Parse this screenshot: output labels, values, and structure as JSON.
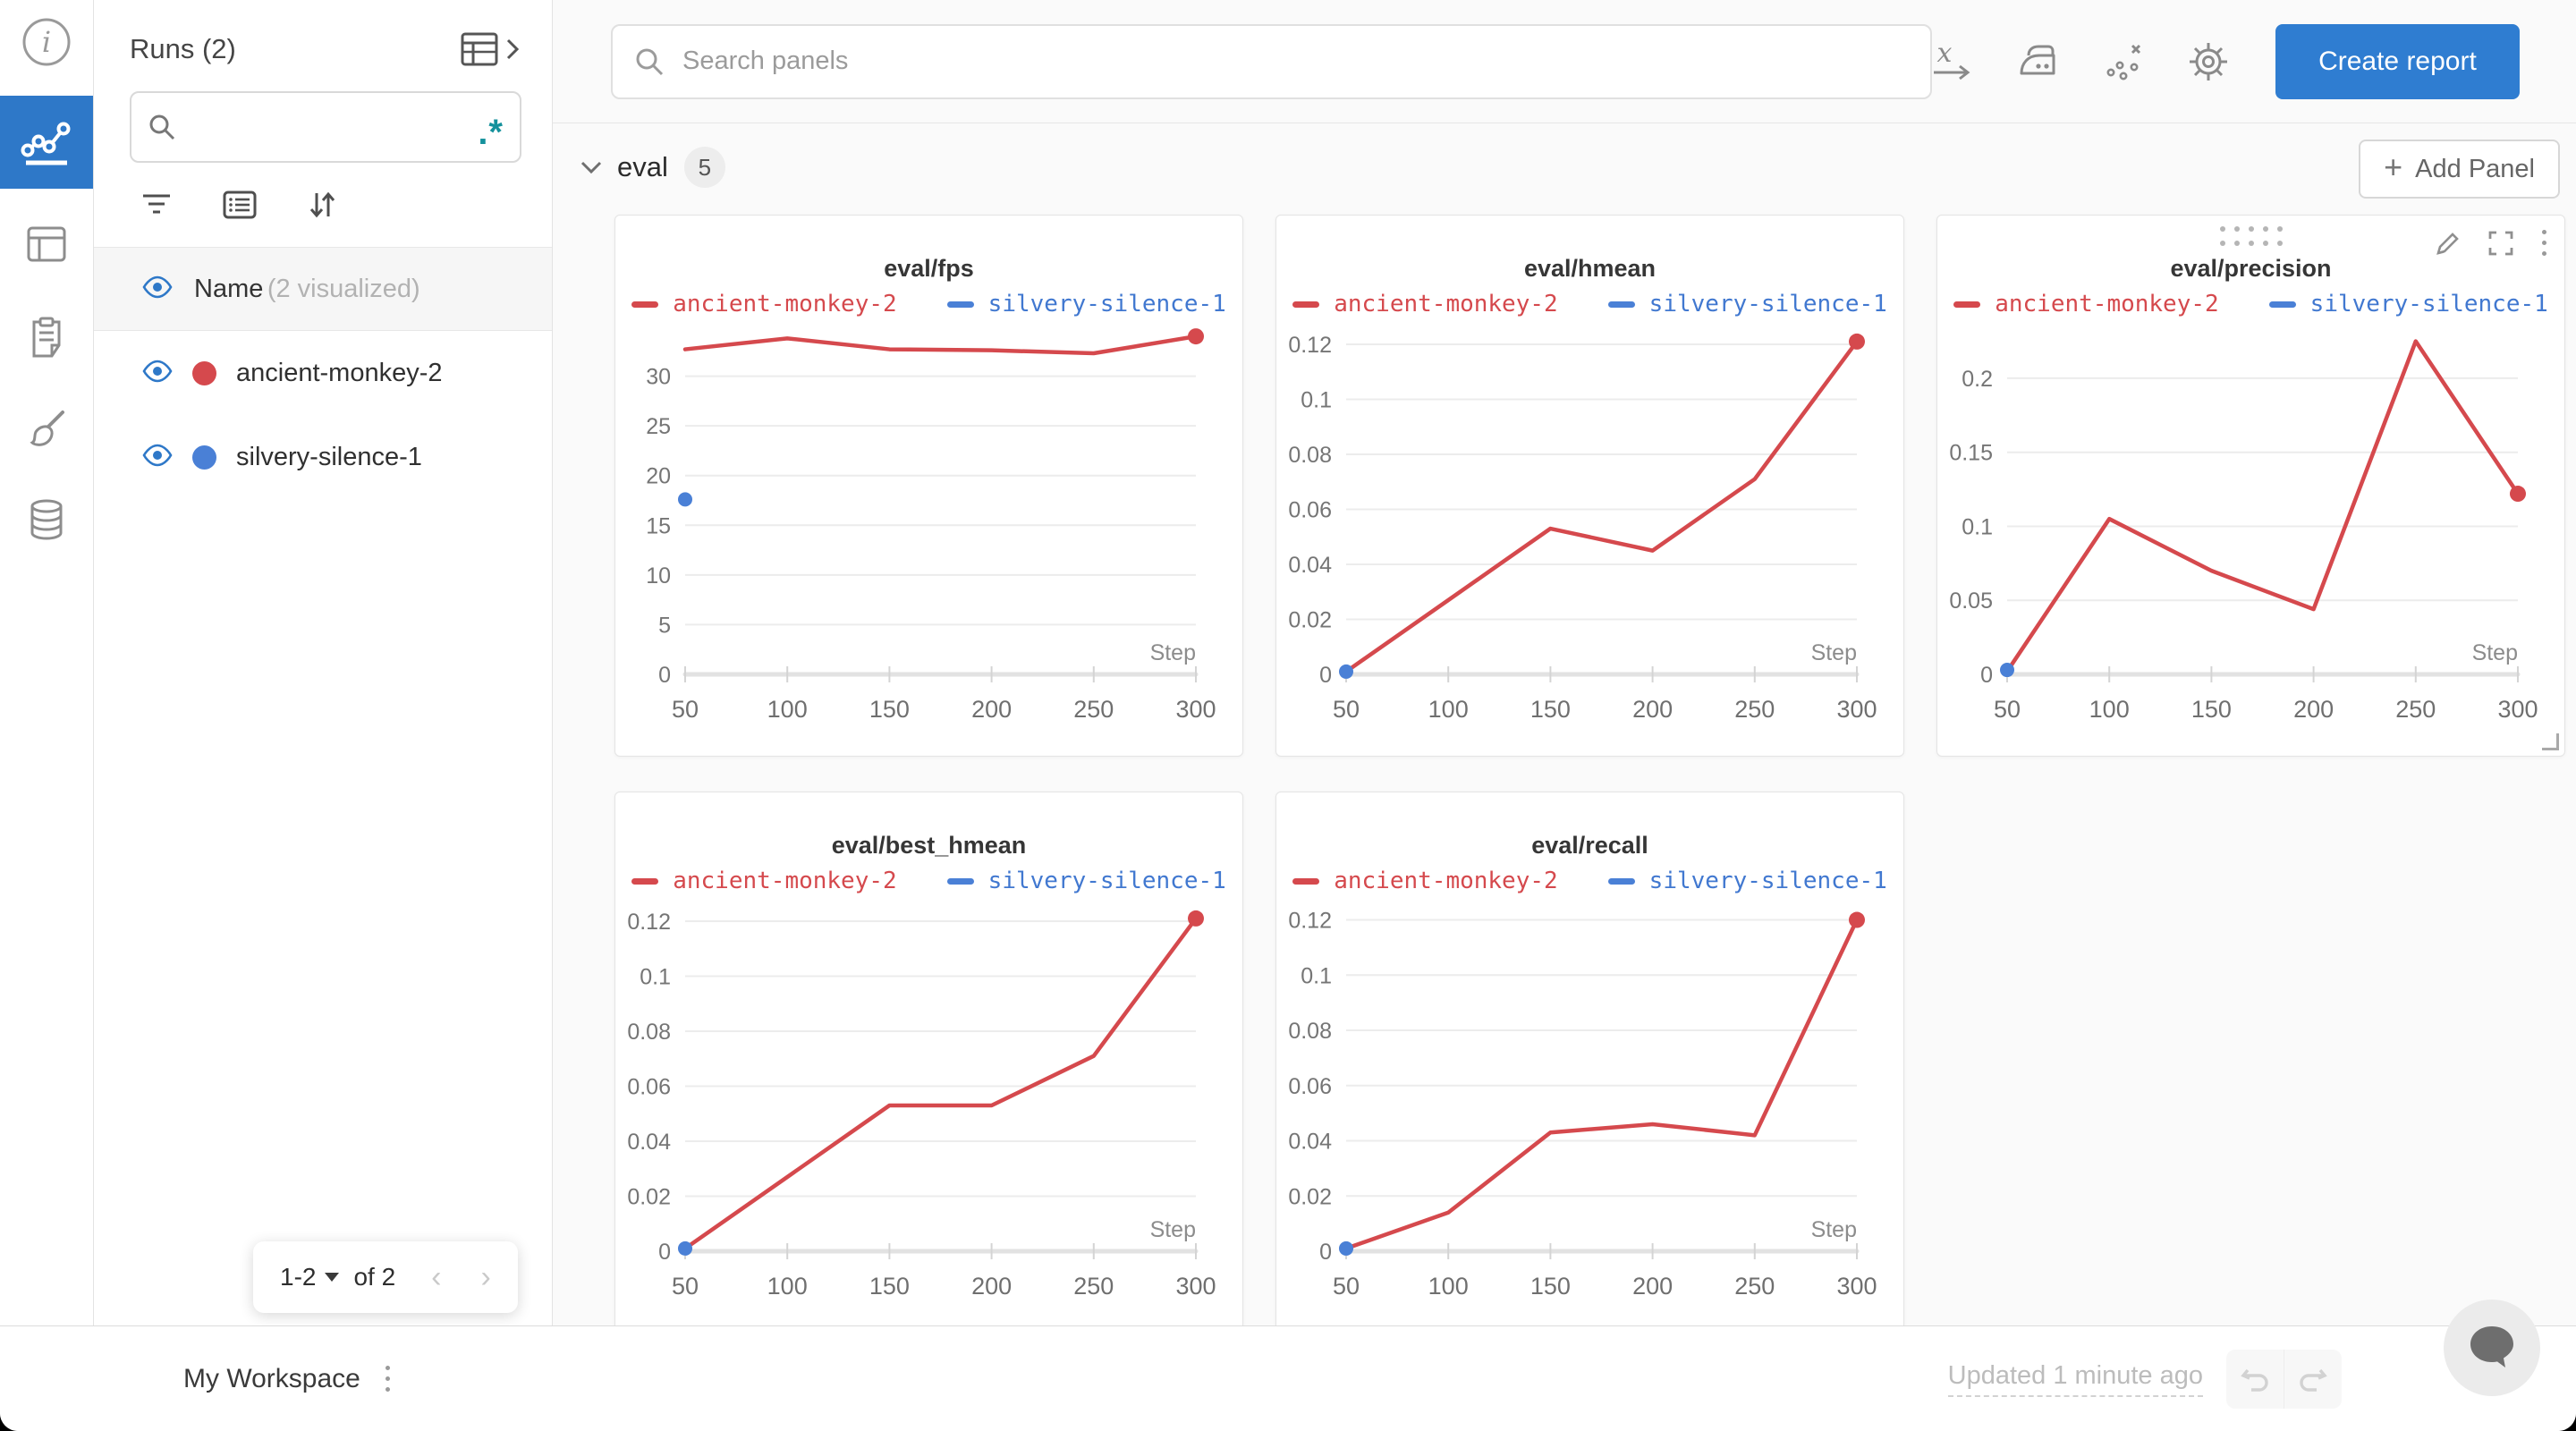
{
  "colors": {
    "brand_blue": "#2e78c8",
    "button_blue": "#2f7dd1",
    "run_red": "#d5494d",
    "run_blue": "#4a80d6",
    "legend_blue_text": "#4178d0",
    "regex_teal": "#14919c",
    "main_bg": "#fafafa",
    "grid_line": "#ececec",
    "axis_line": "#e2e2e2",
    "axis_text": "#757575"
  },
  "nav_rail": {
    "items": [
      "info",
      "line-chart",
      "table",
      "clipboard",
      "brush",
      "database"
    ],
    "active": "line-chart"
  },
  "runs_sidebar": {
    "title": "Runs (2)",
    "search": {
      "value": "",
      "placeholder": "",
      "regex_label": ".*"
    },
    "name_row": {
      "label": "Name",
      "annotation": "(2 visualized)"
    },
    "runs": [
      {
        "name": "ancient-monkey-2",
        "color": "#d5494d",
        "visible": true
      },
      {
        "name": "silvery-silence-1",
        "color": "#4a80d6",
        "visible": true
      }
    ],
    "pagination": {
      "range_label": "1-2",
      "of_label": "of 2",
      "prev": "‹",
      "next": "›"
    }
  },
  "topbar": {
    "search_placeholder": "Search panels",
    "icons": [
      "x-axis",
      "panel-smoothing-iron",
      "outliers",
      "settings-gear"
    ],
    "create_report_label": "Create report"
  },
  "section": {
    "label": "eval",
    "count": "5",
    "add_panel_label": "Add Panel",
    "add_panel_plus": "+"
  },
  "bottombar": {
    "workspace_label": "My Workspace",
    "updated_label": "Updated 1 minute ago"
  },
  "chart_data": [
    {
      "type": "line",
      "title": "eval/fps",
      "xlabel": "Step",
      "xticks": [
        50,
        100,
        150,
        200,
        250,
        300
      ],
      "yticks": [
        0,
        5,
        10,
        15,
        20,
        25,
        30
      ],
      "ylim": [
        0,
        35
      ],
      "grid": "horizontal",
      "legend_position": "top",
      "hovered": false,
      "series": [
        {
          "name": "ancient-monkey-2",
          "color_key": "run_red",
          "x": [
            50,
            100,
            150,
            200,
            250,
            300
          ],
          "y": [
            32.7,
            33.8,
            32.7,
            32.6,
            32.3,
            34.0
          ],
          "end_dot": true
        },
        {
          "name": "silvery-silence-1",
          "color_key": "run_blue",
          "x": [
            50
          ],
          "y": [
            17.6
          ],
          "point_only": true
        }
      ]
    },
    {
      "type": "line",
      "title": "eval/hmean",
      "xlabel": "Step",
      "xticks": [
        50,
        100,
        150,
        200,
        250,
        300
      ],
      "yticks": [
        0,
        0.02,
        0.04,
        0.06,
        0.08,
        0.1,
        0.12
      ],
      "ylim": [
        0,
        0.1265
      ],
      "grid": "horizontal",
      "legend_position": "top",
      "hovered": false,
      "series": [
        {
          "name": "ancient-monkey-2",
          "color_key": "run_red",
          "x": [
            50,
            100,
            150,
            200,
            250,
            300
          ],
          "y": [
            0.001,
            0.027,
            0.053,
            0.045,
            0.071,
            0.121
          ],
          "end_dot": true
        },
        {
          "name": "silvery-silence-1",
          "color_key": "run_blue",
          "x": [
            50
          ],
          "y": [
            0.001
          ],
          "point_only": true
        }
      ]
    },
    {
      "type": "line",
      "title": "eval/precision",
      "xlabel": "Step",
      "xticks": [
        50,
        100,
        150,
        200,
        250,
        300
      ],
      "yticks": [
        0,
        0.05,
        0.1,
        0.15,
        0.2
      ],
      "ylim": [
        0,
        0.235
      ],
      "grid": "horizontal",
      "legend_position": "top",
      "hovered": true,
      "series": [
        {
          "name": "ancient-monkey-2",
          "color_key": "run_red",
          "x": [
            50,
            100,
            150,
            200,
            250,
            300
          ],
          "y": [
            0.002,
            0.105,
            0.07,
            0.044,
            0.225,
            0.122
          ],
          "end_dot": true
        },
        {
          "name": "silvery-silence-1",
          "color_key": "run_blue",
          "x": [
            50
          ],
          "y": [
            0.003
          ],
          "point_only": true
        }
      ]
    },
    {
      "type": "line",
      "title": "eval/best_hmean",
      "xlabel": "Step",
      "xticks": [
        50,
        100,
        150,
        200,
        250,
        300
      ],
      "yticks": [
        0,
        0.02,
        0.04,
        0.06,
        0.08,
        0.1,
        0.12
      ],
      "ylim": [
        0,
        0.1265
      ],
      "grid": "horizontal",
      "legend_position": "top",
      "hovered": false,
      "series": [
        {
          "name": "ancient-monkey-2",
          "color_key": "run_red",
          "x": [
            50,
            100,
            150,
            200,
            250,
            300
          ],
          "y": [
            0.001,
            0.027,
            0.053,
            0.053,
            0.071,
            0.121
          ],
          "end_dot": true
        },
        {
          "name": "silvery-silence-1",
          "color_key": "run_blue",
          "x": [
            50
          ],
          "y": [
            0.001
          ],
          "point_only": true
        }
      ]
    },
    {
      "type": "line",
      "title": "eval/recall",
      "xlabel": "Step",
      "xticks": [
        50,
        100,
        150,
        200,
        250,
        300
      ],
      "yticks": [
        0,
        0.02,
        0.04,
        0.06,
        0.08,
        0.1,
        0.12
      ],
      "ylim": [
        0,
        0.126
      ],
      "grid": "horizontal",
      "legend_position": "top",
      "hovered": false,
      "series": [
        {
          "name": "ancient-monkey-2",
          "color_key": "run_red",
          "x": [
            50,
            100,
            150,
            200,
            250,
            300
          ],
          "y": [
            0.001,
            0.014,
            0.043,
            0.046,
            0.042,
            0.12
          ],
          "end_dot": true
        },
        {
          "name": "silvery-silence-1",
          "color_key": "run_blue",
          "x": [
            50
          ],
          "y": [
            0.001
          ],
          "point_only": true
        }
      ]
    }
  ]
}
